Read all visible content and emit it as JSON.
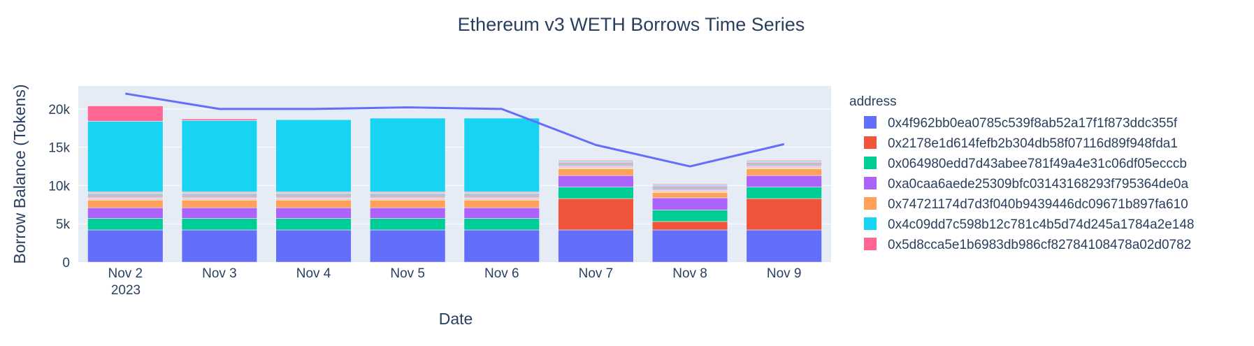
{
  "chart_data": {
    "type": "bar",
    "barmode": "stack",
    "title": "Ethereum v3 WETH Borrows Time Series",
    "xlabel": "Date",
    "ylabel": "Borrow Balance (Tokens)",
    "categories": [
      "Nov 2",
      "Nov 3",
      "Nov 4",
      "Nov 5",
      "Nov 6",
      "Nov 7",
      "Nov 8",
      "Nov 9"
    ],
    "x_year_label": "2023",
    "ylim": [
      0,
      23000
    ],
    "yticks": [
      0,
      5000,
      10000,
      15000,
      20000
    ],
    "ytick_labels": [
      "0",
      "5k",
      "10k",
      "15k",
      "20k"
    ],
    "grid": true,
    "plot_background": "#e5ecf6",
    "legend": {
      "title": "address",
      "placement": "right"
    },
    "series": [
      {
        "name": "0x4f962bb0ea0785c539f8ab52a17f1f873ddc355f",
        "color": "#636efa",
        "values": [
          4200,
          4200,
          4200,
          4200,
          4200,
          4200,
          4200,
          4200
        ]
      },
      {
        "name": "0x2178e1d614fefb2b304db58f07116d89f948fda1",
        "color": "#ef553b",
        "values": [
          0,
          0,
          0,
          0,
          0,
          4100,
          1100,
          4100
        ]
      },
      {
        "name": "0x064980edd7d43abee781f49a4e31c06df05ecccb",
        "color": "#00cc96",
        "values": [
          1500,
          1500,
          1500,
          1500,
          1500,
          1500,
          1500,
          1500
        ]
      },
      {
        "name": "0xa0caa6aede25309bfc03143168293f795364de0a",
        "color": "#ab63fa",
        "values": [
          1400,
          1400,
          1400,
          1400,
          1400,
          1500,
          1600,
          1500
        ]
      },
      {
        "name": "0x74721174d7d3f040b9439446dc09671b897fa610",
        "color": "#ffa15a",
        "values": [
          1000,
          1000,
          1000,
          1000,
          1000,
          900,
          700,
          900
        ]
      },
      {
        "name": "0x4c09dd7c598b12c781c4b5d74d245a1784a2e148",
        "color": "#19d3f3",
        "values": [
          9200,
          9300,
          9400,
          9600,
          9600,
          0,
          0,
          0
        ]
      },
      {
        "name": "0x5d8cca5e1b6983db986cf82784108478a02d0782",
        "color": "#ff6692",
        "values": [
          2000,
          200,
          0,
          0,
          0,
          0,
          0,
          0
        ]
      }
    ],
    "minor_segments": {
      "colors": [
        "#b6e880",
        "#ff97ff",
        "#fecb52",
        "#636efa",
        "#ef553b",
        "#00cc96",
        "#ab63fa",
        "#ffa15a",
        "#19d3f3",
        "#ff6692"
      ],
      "values": [
        [
          120,
          110,
          100,
          120,
          110,
          100,
          110,
          100,
          120,
          110
        ],
        [
          120,
          110,
          100,
          120,
          110,
          100,
          110,
          100,
          120,
          110
        ],
        [
          120,
          110,
          100,
          120,
          110,
          100,
          110,
          100,
          120,
          110
        ],
        [
          120,
          110,
          100,
          120,
          110,
          100,
          110,
          100,
          120,
          110
        ],
        [
          120,
          110,
          100,
          120,
          110,
          100,
          110,
          100,
          120,
          110
        ],
        [
          120,
          110,
          100,
          120,
          110,
          100,
          110,
          100,
          120,
          110
        ],
        [
          120,
          110,
          100,
          120,
          110,
          100,
          110,
          100,
          120,
          110
        ],
        [
          120,
          110,
          100,
          120,
          110,
          100,
          110,
          100,
          120,
          110
        ]
      ]
    },
    "total_line": {
      "color": "#636efa",
      "values": [
        22000,
        20000,
        20000,
        20200,
        20000,
        15300,
        12500,
        15400
      ]
    }
  }
}
